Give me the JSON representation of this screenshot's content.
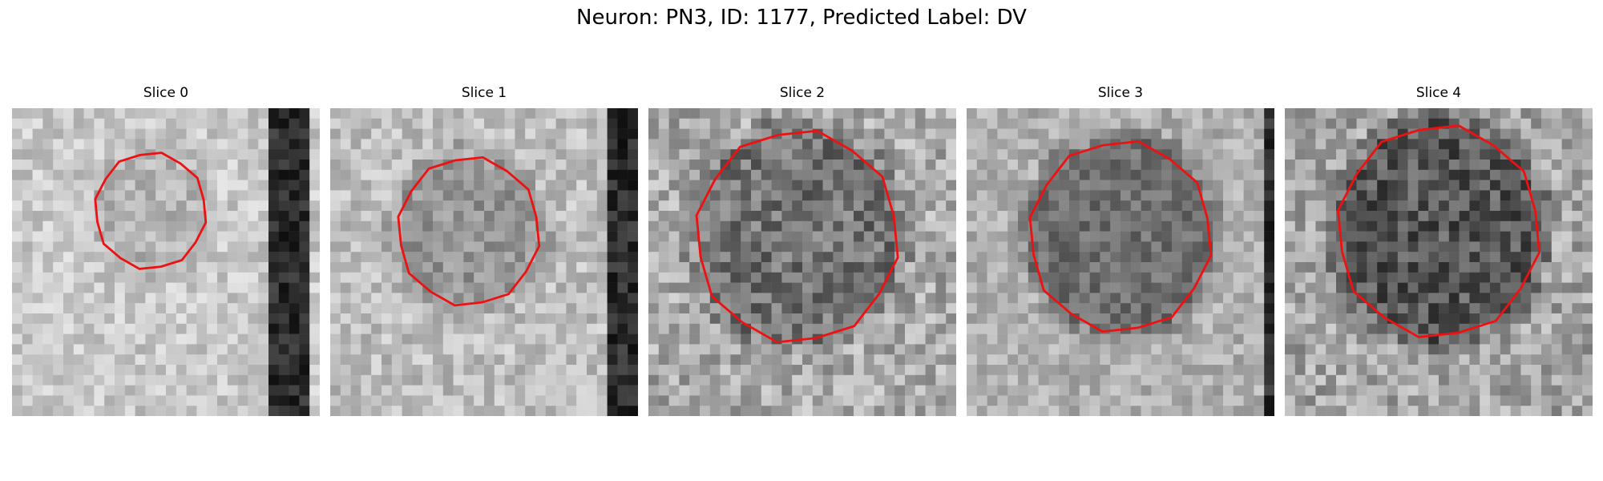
{
  "figure": {
    "title": "Neuron: PN3, ID: 1177, Predicted Label: DV"
  },
  "panels": [
    {
      "title": "Slice 0"
    },
    {
      "title": "Slice 1"
    },
    {
      "title": "Slice 2"
    },
    {
      "title": "Slice 3"
    },
    {
      "title": "Slice 4"
    }
  ],
  "colors": {
    "contour": "#ee1111",
    "background": "#ffffff"
  }
}
